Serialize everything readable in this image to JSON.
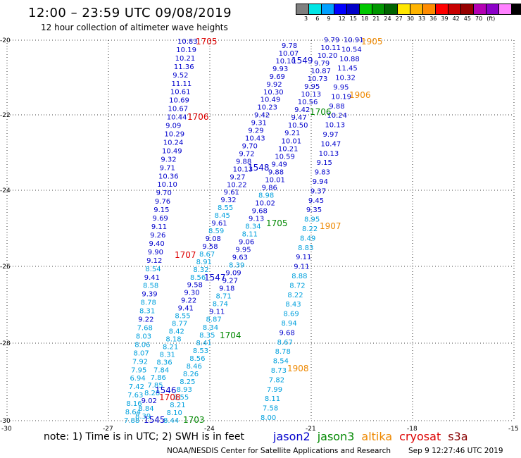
{
  "title": "12:00 – 23:59 UTC 09/08/2019",
  "subtitle": "12 hour collection of altimeter wave heights",
  "scale": {
    "colors": [
      "#7f7f7f",
      "#00e5e5",
      "#00a0ff",
      "#0000ff",
      "#0000c8",
      "#00c800",
      "#009600",
      "#006400",
      "#ffe600",
      "#ffb400",
      "#ff8c00",
      "#ff0000",
      "#c80000",
      "#960000",
      "#b400b4",
      "#8c00c8",
      "#ff82ff",
      "#000000"
    ],
    "labels": [
      "3",
      "6",
      "9",
      "12",
      "15",
      "18",
      "21",
      "24",
      "27",
      "30",
      "33",
      "36",
      "39",
      "42",
      "45",
      "70",
      "(ft)"
    ],
    "unit": "(ft)"
  },
  "axes": {
    "lon_ticks": [
      "-30",
      "-27",
      "-24",
      "-21",
      "-18",
      "-15"
    ],
    "lat_ticks": [
      "-20",
      "-22",
      "-24",
      "-26",
      "-28",
      "-30"
    ]
  },
  "footer": {
    "note": "note: 1) Time is in UTC; 2) SWH is in feet",
    "credit": "NOAA/NESDIS Center for Satellite Applications and Research",
    "timestamp": "Sep  9 12:27:46 UTC 2019"
  },
  "satellites": [
    {
      "name": "jason2",
      "color": "#0000cc"
    },
    {
      "name": "jason3",
      "color": "#008800"
    },
    {
      "name": "altika",
      "color": "#ee8800"
    },
    {
      "name": "cryosat",
      "color": "#dd0000"
    },
    {
      "name": "s3a",
      "color": "#880000"
    }
  ],
  "tracks": [
    {
      "name": "track-a",
      "color": "#0000cc",
      "values": [
        "10.83",
        "10.19",
        "10.21",
        "11.36",
        "9.52",
        "11.11",
        "10.61",
        "10.69",
        "10.67",
        "10.44",
        "9.09",
        "10.29",
        "10.24",
        "10.49",
        "9.32",
        "9.71",
        "10.36",
        "10.10",
        "9.70",
        "9.76",
        "9.15",
        "9.69",
        "9.11",
        "9.26",
        "9.40",
        "9.90",
        "9.12",
        "8.54",
        "9.41",
        "8.58",
        "9.39",
        "8.78",
        "8.31",
        "9.22",
        "7.68",
        "8.03",
        "8.06",
        "8.07",
        "7.92",
        "7.95",
        "6.94",
        "7.42",
        "7.63",
        "8.16",
        "8.64",
        "7.88"
      ]
    },
    {
      "name": "track-b",
      "color": "#0000cc",
      "values": [
        "9.78",
        "10.07",
        "10.10",
        "9.93",
        "9.69",
        "9.92",
        "10.30",
        "10.49",
        "10.23",
        "9.42",
        "9.31",
        "9.29",
        "10.43",
        "9.70",
        "9.72",
        "9.88",
        "10.13",
        "9.27",
        "10.22",
        "9.61",
        "9.32",
        "8.55",
        "8.45",
        "9.61",
        "8.59",
        "9.08",
        "9.58",
        "8.67",
        "8.91",
        "8.32",
        "8.56",
        "9.58",
        "9.30",
        "9.22",
        "9.41",
        "8.55",
        "8.77",
        "8.42",
        "8.18",
        "8.21",
        "8.31",
        "8.36",
        "7.84",
        "7.86",
        "7.85",
        "8.28",
        "9.02",
        "8.84",
        "8.39"
      ]
    },
    {
      "name": "track-c",
      "color": "#0000cc",
      "values": [
        "9.79",
        "10.11",
        "10.20",
        "9.79",
        "10.87",
        "10.73",
        "9.95",
        "10.13",
        "10.56",
        "9.42",
        "9.47",
        "10.50",
        "9.21",
        "10.01",
        "10.21",
        "10.59",
        "9.49",
        "9.88",
        "10.01",
        "9.86",
        "8.98",
        "10.02",
        "9.68",
        "9.13",
        "8.34",
        "8.11",
        "9.06",
        "9.95",
        "9.63",
        "8.39",
        "9.09",
        "9.27",
        "9.18",
        "8.71",
        "8.74",
        "9.11",
        "8.87",
        "8.34",
        "8.35",
        "8.41",
        "8.53",
        "8.56",
        "8.46",
        "8.26",
        "8.25",
        "8.93",
        "8.55",
        "8.21",
        "8.10",
        "8.44"
      ]
    },
    {
      "name": "track-d",
      "color": "#0000cc",
      "values": [
        "10.91",
        "10.54",
        "10.88",
        "11.45",
        "10.32",
        "9.95",
        "10.19",
        "9.88",
        "10.24",
        "10.13",
        "9.97",
        "10.47",
        "10.13",
        "9.15",
        "9.83",
        "9.94",
        "9.37",
        "9.45",
        "9.35",
        "8.95",
        "8.22",
        "8.49",
        "8.83",
        "9.11",
        "9.11",
        "8.88",
        "8.72",
        "8.22",
        "8.43",
        "8.69",
        "8.94",
        "9.68",
        "8.67",
        "8.78",
        "8.54",
        "8.73",
        "7.82",
        "7.99",
        "8.11",
        "7.58",
        "8.00"
      ]
    }
  ],
  "labels_time": [
    {
      "text": "1705",
      "color": "#dd0000"
    },
    {
      "text": "1706",
      "color": "#dd0000"
    },
    {
      "text": "1707",
      "color": "#dd0000"
    },
    {
      "text": "1708",
      "color": "#dd0000"
    },
    {
      "text": "1549",
      "color": "#0000cc"
    },
    {
      "text": "1548",
      "color": "#0000cc"
    },
    {
      "text": "1547",
      "color": "#0000cc"
    },
    {
      "text": "1546",
      "color": "#0000cc"
    },
    {
      "text": "1545",
      "color": "#0000cc"
    },
    {
      "text": "1705",
      "color": "#008800"
    },
    {
      "text": "1706",
      "color": "#008800"
    },
    {
      "text": "1704",
      "color": "#008800"
    },
    {
      "text": "1703",
      "color": "#008800"
    },
    {
      "text": "1905",
      "color": "#ee8800"
    },
    {
      "text": "1906",
      "color": "#ee8800"
    },
    {
      "text": "1907",
      "color": "#ee8800"
    },
    {
      "text": "1908",
      "color": "#ee8800"
    }
  ]
}
